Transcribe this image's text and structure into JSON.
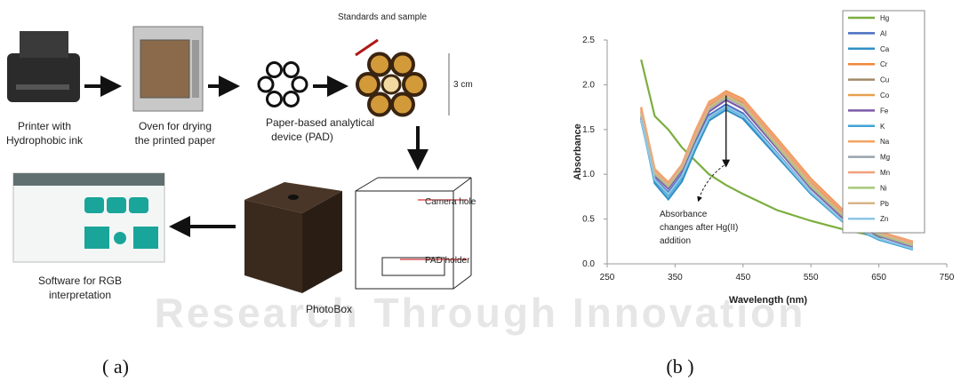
{
  "diagram": {
    "printer": [
      "Printer with",
      "Hydrophobic ink"
    ],
    "oven": [
      "Oven for drying",
      "the printed paper"
    ],
    "sample": "Standards and sample",
    "pad": [
      "Paper-based analytical",
      "device (PAD)"
    ],
    "size": "3 cm",
    "camera_hole": "Camera hole",
    "pad_holder": "PAD holder",
    "photobox": "PhotoBox",
    "software": [
      "Software for RGB",
      "interpretation"
    ]
  },
  "watermark": "Research Through Innovation",
  "captions": [
    "( a)",
    "(b )"
  ],
  "chart_data": {
    "type": "line",
    "x_label": "Wavelength (nm)",
    "y_label": "Absorbance",
    "annotation": [
      "Absorbance",
      "changes  after Hg(II)",
      "addition"
    ],
    "xlim": [
      250,
      750
    ],
    "xticks": [
      250,
      350,
      450,
      550,
      650,
      750
    ],
    "ylim": [
      0,
      2.5
    ],
    "yticks": [
      {
        "value": 0,
        "label": "0.0"
      },
      0.5,
      {
        "value": 1,
        "label": "1.0"
      },
      1.5,
      {
        "value": 2,
        "label": "2.0"
      },
      2.5
    ],
    "legend": "top-right",
    "x": [
      300,
      320,
      340,
      360,
      380,
      400,
      425,
      450,
      500,
      550,
      600,
      650,
      700
    ],
    "series": [
      {
        "name": "Hg",
        "color": "#7cae3f",
        "values": [
          2.28,
          1.65,
          1.5,
          1.3,
          1.15,
          1.0,
          0.88,
          0.78,
          0.6,
          0.48,
          0.38,
          0.3,
          0.25
        ]
      },
      {
        "name": "Al",
        "color": "#4a6fc1",
        "values": [
          1.6,
          0.95,
          0.8,
          1.0,
          1.35,
          1.66,
          1.78,
          1.68,
          1.24,
          0.8,
          0.46,
          0.28,
          0.17
        ]
      },
      {
        "name": "Ca",
        "color": "#2f8fc6",
        "values": [
          1.62,
          0.9,
          0.72,
          0.92,
          1.28,
          1.6,
          1.72,
          1.62,
          1.2,
          0.78,
          0.45,
          0.27,
          0.16
        ]
      },
      {
        "name": "Cr",
        "color": "#f0883a",
        "values": [
          1.75,
          1.05,
          0.9,
          1.1,
          1.48,
          1.8,
          1.93,
          1.84,
          1.4,
          0.95,
          0.58,
          0.36,
          0.24
        ]
      },
      {
        "name": "Cu",
        "color": "#a08a6a",
        "values": [
          1.7,
          1.02,
          0.88,
          1.08,
          1.44,
          1.76,
          1.88,
          1.79,
          1.35,
          0.9,
          0.54,
          0.34,
          0.22
        ]
      },
      {
        "name": "Co",
        "color": "#e8a050",
        "values": [
          1.72,
          1.03,
          0.89,
          1.09,
          1.46,
          1.78,
          1.9,
          1.81,
          1.37,
          0.92,
          0.56,
          0.35,
          0.23
        ]
      },
      {
        "name": "Fe",
        "color": "#7b5aa6",
        "values": [
          1.64,
          0.98,
          0.84,
          1.04,
          1.39,
          1.7,
          1.83,
          1.73,
          1.29,
          0.84,
          0.49,
          0.31,
          0.19
        ]
      },
      {
        "name": "K",
        "color": "#3fa3d4",
        "values": [
          1.6,
          0.93,
          0.76,
          0.96,
          1.31,
          1.63,
          1.75,
          1.65,
          1.22,
          0.79,
          0.45,
          0.27,
          0.16
        ]
      },
      {
        "name": "Na",
        "color": "#f4a460",
        "values": [
          1.74,
          1.06,
          0.91,
          1.11,
          1.49,
          1.81,
          1.92,
          1.83,
          1.39,
          0.94,
          0.57,
          0.36,
          0.25
        ]
      },
      {
        "name": "Mg",
        "color": "#9aa3ad",
        "values": [
          1.66,
          1.0,
          0.86,
          1.06,
          1.41,
          1.73,
          1.86,
          1.76,
          1.31,
          0.86,
          0.51,
          0.32,
          0.2
        ]
      },
      {
        "name": "Mn",
        "color": "#f29f7a",
        "values": [
          1.73,
          1.04,
          0.9,
          1.1,
          1.47,
          1.79,
          1.91,
          1.82,
          1.38,
          0.93,
          0.57,
          0.35,
          0.24
        ]
      },
      {
        "name": "Ni",
        "color": "#a5c97a",
        "values": [
          1.67,
          1.01,
          0.87,
          1.07,
          1.42,
          1.74,
          1.87,
          1.77,
          1.32,
          0.87,
          0.52,
          0.33,
          0.21
        ]
      },
      {
        "name": "Pb",
        "color": "#d8b48a",
        "values": [
          1.69,
          1.02,
          0.88,
          1.08,
          1.43,
          1.75,
          1.88,
          1.78,
          1.34,
          0.89,
          0.53,
          0.34,
          0.22
        ]
      },
      {
        "name": "Zn",
        "color": "#8ec6e6",
        "values": [
          1.61,
          0.94,
          0.78,
          0.98,
          1.33,
          1.64,
          1.76,
          1.66,
          1.23,
          0.8,
          0.46,
          0.28,
          0.17
        ]
      }
    ]
  }
}
